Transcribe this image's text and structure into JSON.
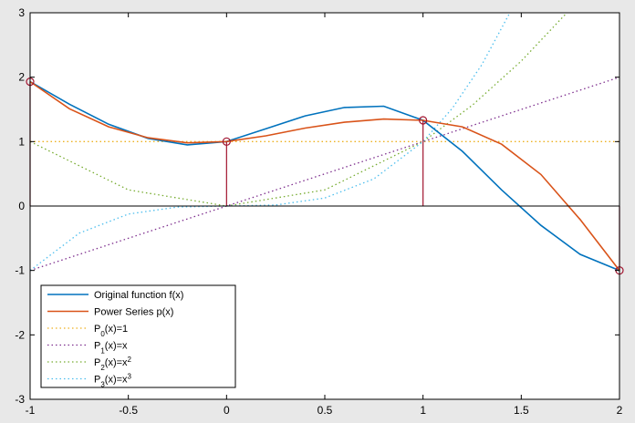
{
  "chart_data": {
    "type": "line",
    "title": "",
    "xlabel": "",
    "ylabel": "",
    "xlim": [
      -1,
      2
    ],
    "ylim": [
      -3,
      3
    ],
    "xticks": [
      "-1",
      "-0.5",
      "0",
      "0.5",
      "1",
      "1.5",
      "2"
    ],
    "yticks": [
      "-3",
      "-2",
      "-1",
      "0",
      "1",
      "2",
      "3"
    ],
    "grid": false,
    "legend_position": "bottom-left",
    "series": [
      {
        "name": "Original function f(x)",
        "style": "solid",
        "color": "#0072bd",
        "x": [
          -1,
          -0.8,
          -0.6,
          -0.4,
          -0.2,
          0,
          0.2,
          0.4,
          0.6,
          0.8,
          1,
          1.2,
          1.4,
          1.6,
          1.8,
          2
        ],
        "y": [
          1.93,
          1.58,
          1.27,
          1.05,
          0.95,
          1.0,
          1.2,
          1.4,
          1.53,
          1.55,
          1.33,
          0.85,
          0.25,
          -0.3,
          -0.75,
          -1.0
        ]
      },
      {
        "name": "Power Series p(x)",
        "style": "solid",
        "color": "#d95319",
        "x": [
          -1,
          -0.8,
          -0.6,
          -0.4,
          -0.2,
          0,
          0.2,
          0.4,
          0.6,
          0.8,
          1,
          1.2,
          1.4,
          1.6,
          1.8,
          2
        ],
        "y": [
          1.93,
          1.51,
          1.23,
          1.06,
          0.98,
          1.0,
          1.09,
          1.21,
          1.3,
          1.35,
          1.33,
          1.23,
          0.96,
          0.49,
          -0.21,
          -1.0
        ]
      },
      {
        "name_parts": [
          "P",
          "0",
          "(x)=1",
          ""
        ],
        "style": "dotted",
        "color": "#edb120",
        "x": [
          -1,
          2
        ],
        "y": [
          1,
          1
        ]
      },
      {
        "name_parts": [
          "P",
          "1",
          "(x)=x",
          ""
        ],
        "style": "dotted",
        "color": "#7e2f8e",
        "x": [
          -1,
          2
        ],
        "y": [
          -1,
          2
        ]
      },
      {
        "name_parts": [
          "P",
          "2",
          "(x)=x",
          "2"
        ],
        "style": "dotted",
        "color": "#77ac30",
        "x": [
          -1,
          -0.5,
          0,
          0.5,
          1,
          1.25,
          1.5,
          1.732
        ],
        "y": [
          1,
          0.25,
          0,
          0.25,
          1,
          1.5625,
          2.25,
          3
        ]
      },
      {
        "name_parts": [
          "P",
          "3",
          "(x)=x",
          "3"
        ],
        "style": "dotted",
        "color": "#4dbeee",
        "x": [
          -1,
          -0.75,
          -0.5,
          -0.25,
          0,
          0.25,
          0.5,
          0.75,
          1,
          1.15,
          1.3,
          1.442
        ],
        "y": [
          -1,
          -0.4219,
          -0.125,
          -0.0156,
          0,
          0.0156,
          0.125,
          0.4219,
          1,
          1.5209,
          2.197,
          3
        ]
      }
    ],
    "stems": {
      "color": "#a2142f",
      "x": [
        -1,
        0,
        1,
        2
      ],
      "y": [
        1.93,
        1.0,
        1.33,
        -1.0
      ]
    }
  }
}
